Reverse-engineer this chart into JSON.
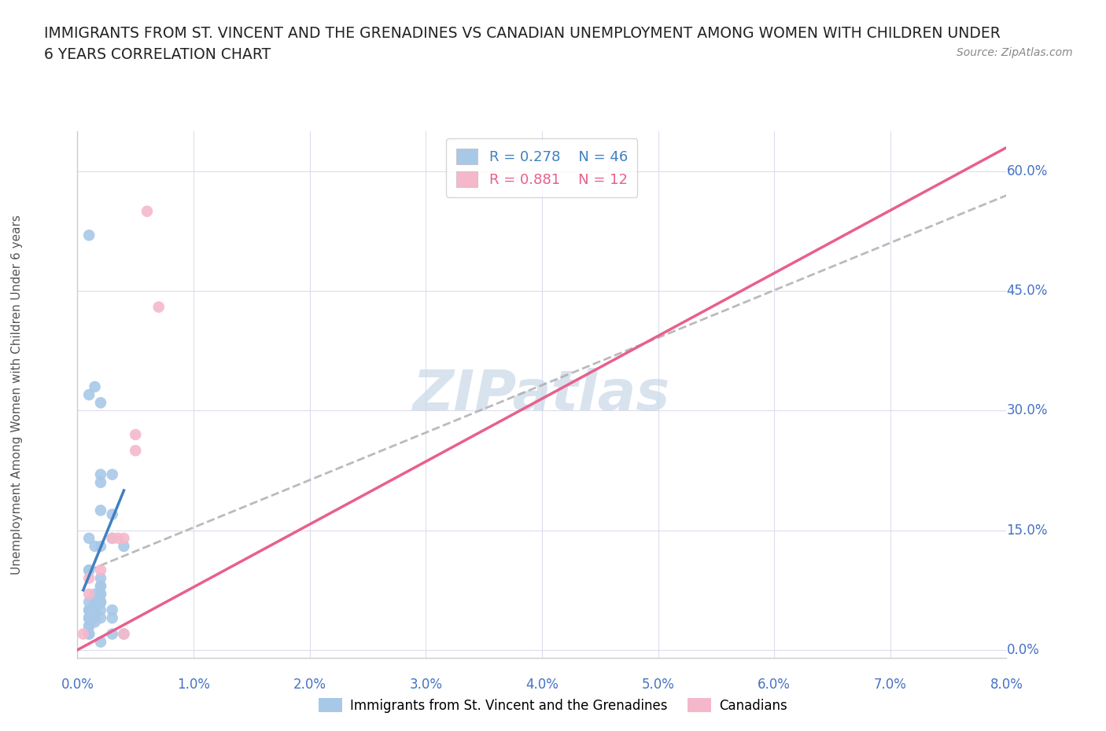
{
  "title_line1": "IMMIGRANTS FROM ST. VINCENT AND THE GRENADINES VS CANADIAN UNEMPLOYMENT AMONG WOMEN WITH CHILDREN UNDER",
  "title_line2": "6 YEARS CORRELATION CHART",
  "source": "Source: ZipAtlas.com",
  "xlabel_ticks": [
    "0.0%",
    "1.0%",
    "2.0%",
    "3.0%",
    "4.0%",
    "5.0%",
    "6.0%",
    "7.0%",
    "8.0%"
  ],
  "ylabel_ticks": [
    "0.0%",
    "15.0%",
    "30.0%",
    "45.0%",
    "60.0%"
  ],
  "ylabel_label": "Unemployment Among Women with Children Under 6 years",
  "xlim": [
    0.0,
    0.08
  ],
  "ylim": [
    -0.01,
    0.65
  ],
  "legend_r_blue": "R = 0.278",
  "legend_n_blue": "N = 46",
  "legend_r_pink": "R = 0.881",
  "legend_n_pink": "N = 12",
  "blue_color": "#a8c8e8",
  "pink_color": "#f5b8cb",
  "blue_line_color": "#4080c0",
  "pink_line_color": "#e8608a",
  "dash_line_color": "#aaaaaa",
  "watermark_color": "#c8d8e8",
  "blue_scatter_x": [
    0.001,
    0.0015,
    0.002,
    0.001,
    0.002,
    0.001,
    0.002,
    0.002,
    0.001,
    0.0015,
    0.001,
    0.002,
    0.001,
    0.0015,
    0.002,
    0.002,
    0.003,
    0.002,
    0.003,
    0.004,
    0.001,
    0.001,
    0.002,
    0.003,
    0.0015,
    0.001,
    0.002,
    0.0015,
    0.002,
    0.003,
    0.001,
    0.001,
    0.0015,
    0.001,
    0.002,
    0.002,
    0.002,
    0.001,
    0.003,
    0.001,
    0.004,
    0.002,
    0.003,
    0.001,
    0.001,
    0.0015
  ],
  "blue_scatter_y": [
    0.52,
    0.035,
    0.04,
    0.04,
    0.07,
    0.04,
    0.09,
    0.06,
    0.05,
    0.07,
    0.05,
    0.31,
    0.32,
    0.33,
    0.07,
    0.22,
    0.22,
    0.21,
    0.14,
    0.13,
    0.1,
    0.1,
    0.175,
    0.17,
    0.13,
    0.14,
    0.06,
    0.06,
    0.08,
    0.05,
    0.04,
    0.04,
    0.04,
    0.06,
    0.05,
    0.08,
    0.13,
    0.03,
    0.02,
    0.03,
    0.02,
    0.01,
    0.04,
    0.02,
    0.02,
    0.05
  ],
  "pink_scatter_x": [
    0.0005,
    0.001,
    0.002,
    0.003,
    0.004,
    0.004,
    0.005,
    0.006,
    0.007,
    0.005,
    0.0035,
    0.001
  ],
  "pink_scatter_y": [
    0.02,
    0.09,
    0.1,
    0.14,
    0.14,
    0.02,
    0.25,
    0.55,
    0.43,
    0.27,
    0.14,
    0.07
  ],
  "blue_line_x": [
    0.0005,
    0.004
  ],
  "blue_line_y": [
    0.075,
    0.2
  ],
  "pink_line_x": [
    0.0,
    0.08
  ],
  "pink_line_y": [
    0.0,
    0.63
  ],
  "dash_line_x": [
    0.001,
    0.08
  ],
  "dash_line_y": [
    0.1,
    0.57
  ]
}
